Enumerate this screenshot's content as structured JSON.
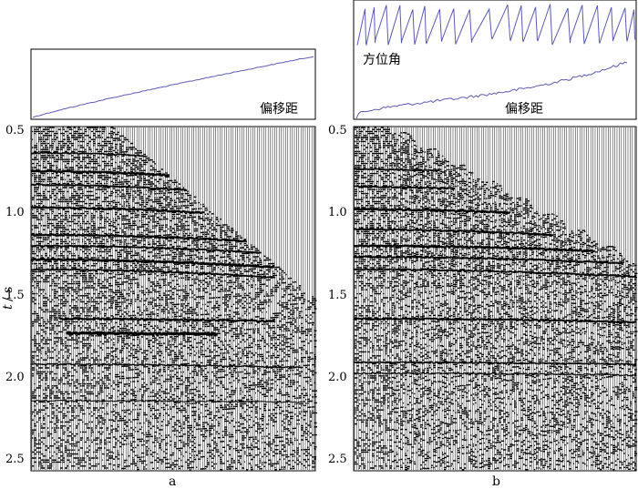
{
  "panels": [
    {
      "id": "a",
      "label": "a",
      "header_labels": [
        "偏移距"
      ],
      "curves": [
        "offset"
      ]
    },
    {
      "id": "b",
      "label": "b",
      "header_labels": [
        "方位角",
        "偏移距"
      ],
      "curves": [
        "azimuth",
        "offset"
      ]
    }
  ],
  "time_axis": {
    "label_var": "t",
    "label_unit": "/ s",
    "ticks": [
      "0.5",
      "1.0",
      "1.5",
      "2.0",
      "2.5"
    ],
    "range": [
      0.5,
      2.55
    ]
  },
  "colors": {
    "curve": "#5a5ab4",
    "trace": "#000000",
    "frame": "#000000",
    "background": "#ffffff"
  }
}
